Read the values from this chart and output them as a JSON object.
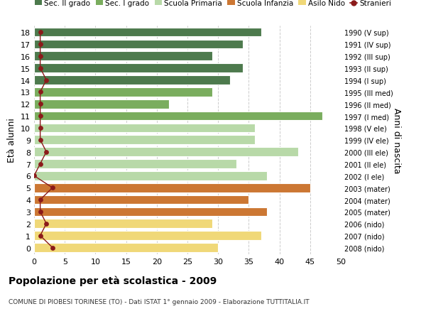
{
  "ages": [
    18,
    17,
    16,
    15,
    14,
    13,
    12,
    11,
    10,
    9,
    8,
    7,
    6,
    5,
    4,
    3,
    2,
    1,
    0
  ],
  "years": [
    "1990 (V sup)",
    "1991 (IV sup)",
    "1992 (III sup)",
    "1993 (II sup)",
    "1994 (I sup)",
    "1995 (III med)",
    "1996 (II med)",
    "1997 (I med)",
    "1998 (V ele)",
    "1999 (IV ele)",
    "2000 (III ele)",
    "2001 (II ele)",
    "2002 (I ele)",
    "2003 (mater)",
    "2004 (mater)",
    "2005 (mater)",
    "2006 (nido)",
    "2007 (nido)",
    "2008 (nido)"
  ],
  "bar_values": [
    37,
    34,
    29,
    34,
    32,
    29,
    22,
    47,
    36,
    36,
    43,
    33,
    38,
    45,
    35,
    38,
    29,
    37,
    30
  ],
  "bar_colors": [
    "#4d7a4d",
    "#4d7a4d",
    "#4d7a4d",
    "#4d7a4d",
    "#4d7a4d",
    "#7aad5e",
    "#7aad5e",
    "#7aad5e",
    "#b8d9a8",
    "#b8d9a8",
    "#b8d9a8",
    "#b8d9a8",
    "#b8d9a8",
    "#cc7733",
    "#cc7733",
    "#cc7733",
    "#f0d878",
    "#f0d878",
    "#f0d878"
  ],
  "stranieri_values": [
    1,
    1,
    1,
    1,
    2,
    1,
    1,
    1,
    1,
    1,
    2,
    1,
    0,
    3,
    1,
    1,
    2,
    1,
    3
  ],
  "ylabel": "Età alunni",
  "ylabel_right": "Anni di nascita",
  "xlim": [
    0,
    50
  ],
  "xticks": [
    0,
    5,
    10,
    15,
    20,
    25,
    30,
    35,
    40,
    45,
    50
  ],
  "title": "Popolazione per età scolastica - 2009",
  "subtitle": "COMUNE DI PIOBESI TORINESE (TO) - Dati ISTAT 1° gennaio 2009 - Elaborazione TUTTITALIA.IT",
  "legend_labels": [
    "Sec. II grado",
    "Sec. I grado",
    "Scuola Primaria",
    "Scuola Infanzia",
    "Asilo Nido",
    "Stranieri"
  ],
  "legend_colors": [
    "#4d7a4d",
    "#7aad5e",
    "#b8d9a8",
    "#cc7733",
    "#f0d878",
    "#8b1a1a"
  ],
  "bar_height": 0.75,
  "background_color": "#ffffff",
  "grid_color": "#cccccc"
}
